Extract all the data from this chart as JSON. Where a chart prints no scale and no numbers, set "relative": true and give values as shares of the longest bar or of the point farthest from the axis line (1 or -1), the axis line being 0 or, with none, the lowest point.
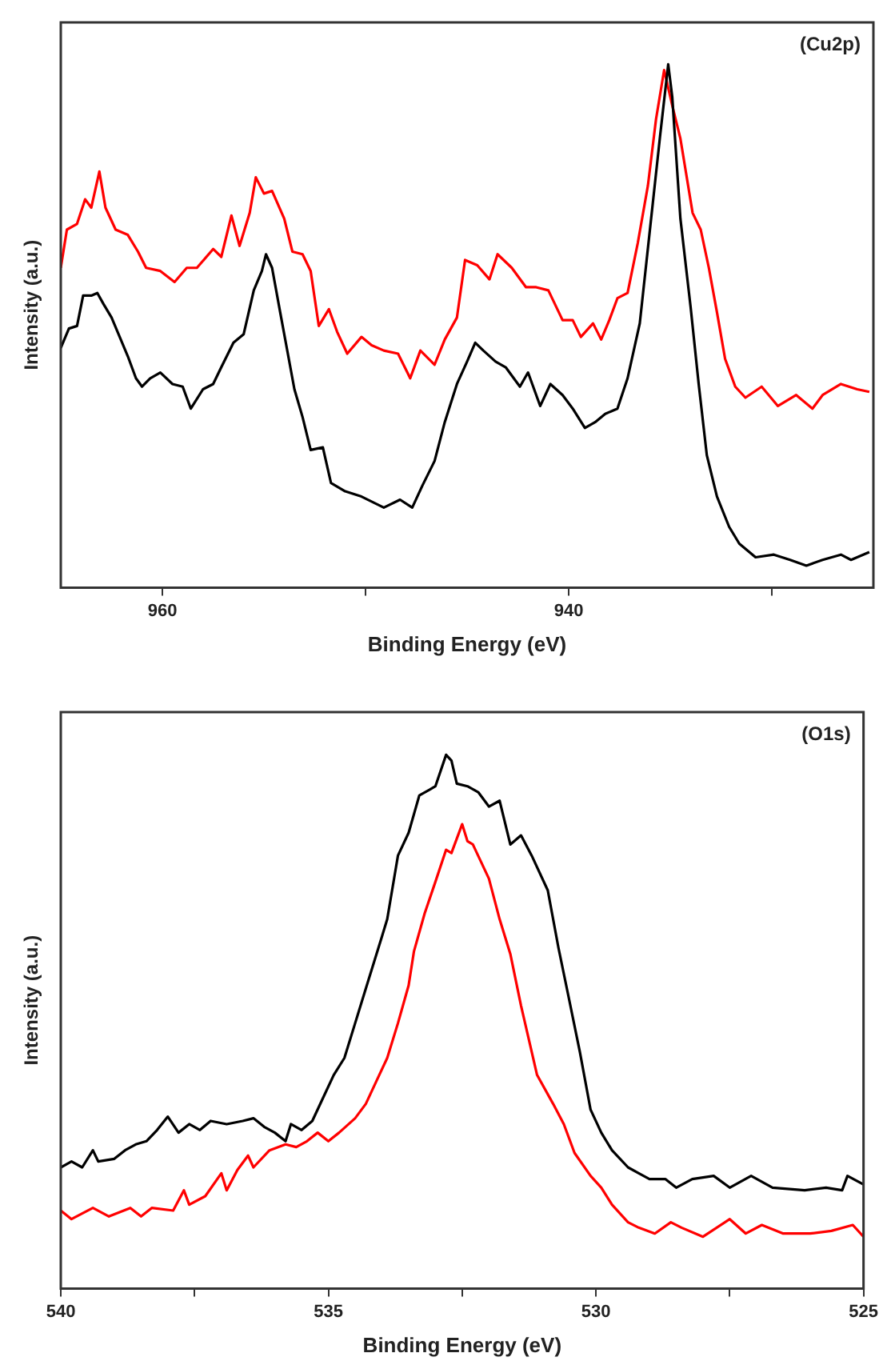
{
  "chart_data": [
    {
      "type": "line",
      "relative": true,
      "xlabel": "Binding Energy (eV)",
      "ylabel": "Intensity (a.u.)",
      "annotations": [
        "(Cu2p)"
      ],
      "xlim": [
        965,
        925
      ],
      "xticks": [
        960,
        {
          "value": 950,
          "label": null
        },
        940,
        {
          "value": 930,
          "label": null
        }
      ],
      "series": [
        {
          "color": "#000000",
          "x": [
            965.0,
            964.6,
            964.2,
            963.9,
            963.5,
            963.2,
            962.9,
            962.5,
            962.1,
            961.7,
            961.3,
            961.0,
            960.6,
            960.1,
            959.5,
            959.0,
            958.6,
            958.0,
            957.5,
            957.1,
            956.5,
            956.0,
            955.5,
            955.1,
            954.9,
            954.6,
            954.2,
            953.8,
            953.5,
            953.1,
            952.7,
            952.1,
            951.7,
            951.0,
            950.2,
            949.1,
            948.3,
            947.7,
            947.2,
            946.6,
            946.1,
            945.5,
            945.0,
            944.6,
            944.2,
            943.6,
            943.1,
            942.4,
            942.0,
            941.4,
            940.9,
            940.3,
            939.8,
            939.2,
            938.7,
            938.2,
            937.6,
            937.1,
            936.5,
            936.0,
            935.5,
            935.1,
            934.9,
            934.5,
            934.0,
            933.6,
            933.2,
            932.7,
            932.1,
            931.6,
            930.8,
            929.9,
            929.1,
            928.3,
            927.5,
            926.6,
            926.1,
            925.2
          ],
          "values": [
            0.458,
            0.495,
            0.5,
            0.558,
            0.558,
            0.563,
            0.542,
            0.516,
            0.479,
            0.442,
            0.4,
            0.384,
            0.4,
            0.411,
            0.389,
            0.384,
            0.342,
            0.379,
            0.389,
            0.421,
            0.468,
            0.484,
            0.568,
            0.605,
            0.637,
            0.611,
            0.526,
            0.442,
            0.379,
            0.326,
            0.263,
            0.268,
            0.2,
            0.184,
            0.174,
            0.153,
            0.168,
            0.153,
            0.195,
            0.242,
            0.316,
            0.389,
            0.432,
            0.468,
            0.453,
            0.432,
            0.421,
            0.384,
            0.411,
            0.347,
            0.389,
            0.368,
            0.342,
            0.305,
            0.316,
            0.332,
            0.342,
            0.4,
            0.505,
            0.684,
            0.863,
            1,
            0.937,
            0.705,
            0.537,
            0.389,
            0.253,
            0.174,
            0.116,
            0.084,
            0.058,
            0.063,
            0.053,
            0.042,
            0.053,
            0.063,
            0.053,
            0.068
          ]
        },
        {
          "color": "#ff0000",
          "x": [
            965.0,
            964.7,
            964.2,
            963.8,
            963.5,
            963.1,
            962.8,
            962.3,
            961.7,
            961.2,
            960.8,
            960.1,
            959.4,
            958.8,
            958.3,
            957.5,
            957.1,
            956.6,
            956.2,
            955.7,
            955.4,
            955.0,
            954.6,
            954.0,
            953.6,
            953.1,
            952.7,
            952.3,
            951.8,
            951.4,
            950.9,
            950.2,
            949.7,
            949.1,
            948.4,
            947.8,
            947.3,
            946.6,
            946.1,
            945.5,
            945.1,
            944.5,
            943.9,
            943.5,
            942.8,
            942.1,
            941.6,
            941.0,
            940.3,
            939.8,
            939.4,
            938.8,
            938.4,
            938.0,
            937.6,
            937.1,
            936.6,
            936.1,
            935.7,
            935.3,
            934.9,
            934.5,
            933.9,
            933.5,
            933.1,
            932.7,
            932.3,
            931.8,
            931.3,
            930.5,
            929.7,
            928.8,
            928.0,
            927.5,
            926.6,
            925.8,
            925.2
          ],
          "values": [
            0.611,
            0.684,
            0.695,
            0.742,
            0.726,
            0.795,
            0.726,
            0.684,
            0.674,
            0.642,
            0.611,
            0.605,
            0.584,
            0.611,
            0.611,
            0.647,
            0.632,
            0.711,
            0.653,
            0.716,
            0.784,
            0.753,
            0.758,
            0.705,
            0.642,
            0.637,
            0.605,
            0.5,
            0.532,
            0.489,
            0.447,
            0.479,
            0.463,
            0.453,
            0.447,
            0.4,
            0.453,
            0.426,
            0.474,
            0.516,
            0.626,
            0.616,
            0.589,
            0.637,
            0.611,
            0.574,
            0.574,
            0.568,
            0.511,
            0.511,
            0.479,
            0.505,
            0.474,
            0.511,
            0.553,
            0.563,
            0.658,
            0.768,
            0.895,
            0.989,
            0.921,
            0.858,
            0.716,
            0.684,
            0.611,
            0.526,
            0.437,
            0.384,
            0.363,
            0.384,
            0.347,
            0.368,
            0.342,
            0.368,
            0.389,
            0.379,
            0.374
          ]
        }
      ]
    },
    {
      "type": "line",
      "relative": true,
      "xlabel": "Binding Energy (eV)",
      "ylabel": "Intensity (a.u.)",
      "annotations": [
        "(O1s)"
      ],
      "xlim": [
        540,
        525
      ],
      "xticks": [
        540,
        {
          "value": 537.5,
          "label": null
        },
        535,
        {
          "value": 532.5,
          "label": null
        },
        530,
        {
          "value": 527.5,
          "label": null
        },
        525
      ],
      "series": [
        {
          "color": "#000000",
          "x": [
            540.0,
            539.8,
            539.6,
            539.4,
            539.3,
            539.0,
            538.8,
            538.6,
            538.4,
            538.2,
            538.0,
            537.8,
            537.6,
            537.4,
            537.2,
            536.9,
            536.6,
            536.4,
            536.2,
            536.0,
            535.8,
            535.7,
            535.5,
            535.3,
            535.1,
            534.9,
            534.7,
            534.5,
            534.3,
            534.0,
            533.9,
            533.7,
            533.5,
            533.3,
            533.1,
            533.0,
            532.8,
            532.7,
            532.6,
            532.4,
            532.2,
            532.0,
            531.8,
            531.6,
            531.4,
            531.2,
            530.9,
            530.7,
            530.5,
            530.3,
            530.1,
            529.9,
            529.7,
            529.4,
            529.2,
            529.0,
            528.7,
            528.5,
            528.2,
            527.8,
            527.5,
            527.1,
            526.7,
            526.1,
            525.7,
            525.4,
            525.3,
            525.0
          ],
          "values": [
            0.227,
            0.238,
            0.227,
            0.259,
            0.238,
            0.243,
            0.259,
            0.27,
            0.276,
            0.297,
            0.322,
            0.292,
            0.308,
            0.297,
            0.314,
            0.308,
            0.314,
            0.319,
            0.303,
            0.292,
            0.276,
            0.308,
            0.297,
            0.314,
            0.357,
            0.4,
            0.432,
            0.497,
            0.562,
            0.659,
            0.692,
            0.811,
            0.854,
            0.924,
            0.935,
            0.941,
            1,
            0.989,
            0.946,
            0.941,
            0.93,
            0.903,
            0.914,
            0.832,
            0.849,
            0.811,
            0.746,
            0.638,
            0.541,
            0.443,
            0.335,
            0.292,
            0.259,
            0.227,
            0.216,
            0.205,
            0.205,
            0.189,
            0.205,
            0.211,
            0.189,
            0.211,
            0.189,
            0.184,
            0.189,
            0.184,
            0.211,
            0.195
          ]
        },
        {
          "color": "#ff0000",
          "x": [
            540.0,
            539.8,
            539.4,
            539.1,
            538.7,
            538.5,
            538.3,
            537.9,
            537.7,
            537.6,
            537.3,
            537.0,
            536.9,
            536.7,
            536.5,
            536.4,
            536.1,
            535.8,
            535.6,
            535.4,
            535.2,
            535.0,
            534.8,
            534.5,
            534.3,
            534.1,
            533.9,
            533.7,
            533.5,
            533.4,
            533.2,
            533.0,
            532.8,
            532.7,
            532.5,
            532.4,
            532.3,
            532.0,
            531.8,
            531.6,
            531.4,
            531.1,
            530.8,
            530.6,
            530.4,
            530.1,
            529.9,
            529.7,
            529.4,
            529.2,
            528.9,
            528.6,
            528.4,
            528.0,
            527.5,
            527.2,
            526.9,
            526.5,
            526.0,
            525.6,
            525.2,
            525.0
          ],
          "values": [
            0.146,
            0.13,
            0.151,
            0.135,
            0.151,
            0.135,
            0.151,
            0.146,
            0.184,
            0.157,
            0.173,
            0.216,
            0.184,
            0.222,
            0.249,
            0.227,
            0.259,
            0.27,
            0.265,
            0.276,
            0.292,
            0.276,
            0.292,
            0.319,
            0.346,
            0.389,
            0.432,
            0.497,
            0.568,
            0.632,
            0.703,
            0.762,
            0.822,
            0.816,
            0.87,
            0.838,
            0.832,
            0.768,
            0.692,
            0.627,
            0.53,
            0.4,
            0.346,
            0.308,
            0.254,
            0.211,
            0.189,
            0.157,
            0.124,
            0.114,
            0.103,
            0.124,
            0.114,
            0.097,
            0.13,
            0.103,
            0.119,
            0.103,
            0.103,
            0.108,
            0.119,
            0.097
          ]
        }
      ]
    }
  ]
}
